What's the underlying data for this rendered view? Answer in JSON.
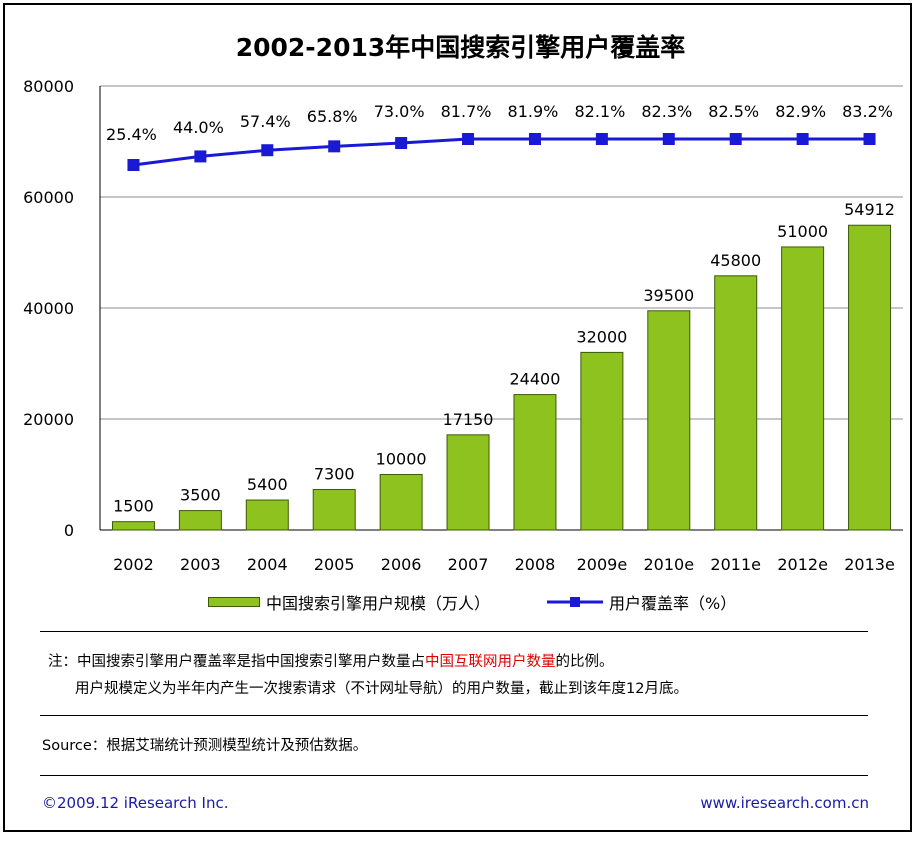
{
  "title": "2002-2013年中国搜索引擎用户覆盖率",
  "chart_data": {
    "type": "bar+line",
    "categories": [
      "2002",
      "2003",
      "2004",
      "2005",
      "2006",
      "2007",
      "2008",
      "2009e",
      "2010e",
      "2011e",
      "2012e",
      "2013e"
    ],
    "series": [
      {
        "name": "中国搜索引擎用户规模（万人）",
        "type": "bar",
        "values": [
          1500,
          3500,
          5400,
          7300,
          10000,
          17150,
          24400,
          32000,
          39500,
          45800,
          51000,
          54912
        ],
        "labels": [
          "1500",
          "3500",
          "5400",
          "7300",
          "10000",
          "17150",
          "24400",
          "32000",
          "39500",
          "45800",
          "51000",
          "54912"
        ]
      },
      {
        "name": "用户覆盖率（%）",
        "type": "line",
        "values": [
          25.4,
          44.0,
          57.4,
          65.8,
          73.0,
          81.7,
          81.9,
          82.1,
          82.3,
          82.5,
          82.9,
          83.2
        ],
        "labels": [
          "25.4%",
          "44.0%",
          "57.4%",
          "65.8%",
          "73.0%",
          "81.7%",
          "81.9%",
          "82.1%",
          "82.3%",
          "82.5%",
          "82.9%",
          "83.2%"
        ]
      }
    ],
    "yticks": [
      "80000",
      "60000",
      "40000",
      "20000",
      "0"
    ],
    "ylim": [
      0,
      80000
    ],
    "colors": {
      "bar": "#8ec21e",
      "bar_edge": "#3d5a08",
      "line": "#1a1ad6",
      "grid": "#8c8c8c"
    }
  },
  "legend": {
    "bar_label": "中国搜索引擎用户规模（万人）",
    "line_label": "用户覆盖率（%）"
  },
  "notes": {
    "line1_prefix": "注：中国搜索引擎用户覆盖率是指中国搜索引擎用户数量占",
    "line1_highlight": "中国互联网用户数量",
    "line1_suffix": "的比例。",
    "line2": "用户规模定义为半年内产生一次搜索请求（不计网址导航）的用户数量，截止到该年度12月底。"
  },
  "source": "Source：根据艾瑞统计预测模型统计及预估数据。",
  "footer": {
    "copyright": "©2009.12 iResearch Inc.",
    "url": "www.iresearch.com.cn"
  }
}
